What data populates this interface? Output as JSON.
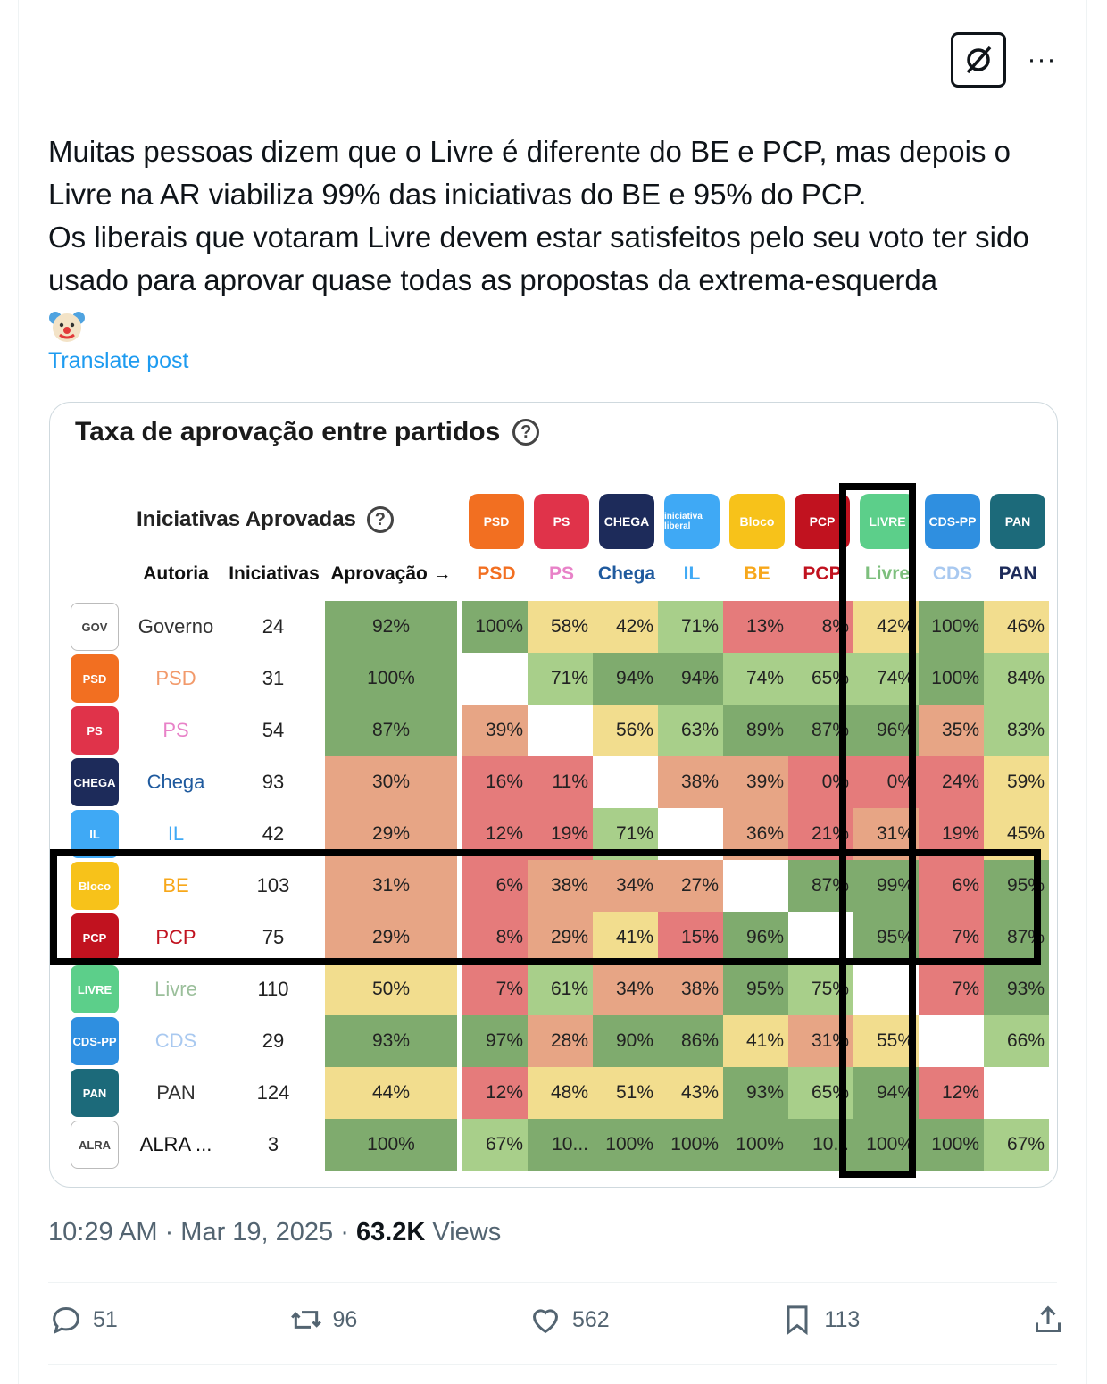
{
  "post": {
    "text_lines": [
      "Muitas pessoas dizem que o Livre é diferente do BE e PCP, mas depois o Livre na AR viabiliza 99% das iniciativas do BE e 95% do PCP.",
      "Os liberais que votaram Livre devem estar satisfeitos pelo seu voto ter sido usado para aprovar quase todas as propostas da extrema-esquerda"
    ],
    "emoji": "clown-face",
    "translate_label": "Translate post",
    "more_label": "···"
  },
  "media": {
    "title": "Taxa de aprovação entre partidos",
    "subtitle": "Iniciativas Aprovadas",
    "help_glyph": "?",
    "headers": {
      "autoria": "Autoria",
      "iniciativas": "Iniciativas",
      "aprovacao": "Aprovação →"
    },
    "columns": [
      {
        "name": "PSD",
        "logo": "PSD",
        "color": "#f26f21"
      },
      {
        "name": "PS",
        "logo": "PS",
        "color": "#e0334a"
      },
      {
        "name": "Chega",
        "logo": "CHEGA",
        "color": "#1d2b5a"
      },
      {
        "name": "IL",
        "logo": "iniciativa liberal",
        "color": "#3fa9f5"
      },
      {
        "name": "BE",
        "logo": "Bloco",
        "color": "#f7c21a"
      },
      {
        "name": "PCP",
        "logo": "PCP",
        "color": "#c1121f"
      },
      {
        "name": "Livre",
        "logo": "LIVRE",
        "color": "#5ccf8a"
      },
      {
        "name": "CDS",
        "logo": "CDS-PP",
        "color": "#2f8fe0"
      },
      {
        "name": "PAN",
        "logo": "PAN",
        "color": "#1c6a7a"
      }
    ],
    "column_label_colors": [
      "#f26f21",
      "#e882c8",
      "#1f5a9e",
      "#3fa9f5",
      "#f7a71a",
      "#c1121f",
      "#7dbf7d",
      "#a9c9f0",
      "#1d2b5a"
    ],
    "rows": [
      {
        "name": "Governo",
        "count": "24",
        "approval": "92%",
        "label_color": "#333",
        "logo": "GOV",
        "logo_color": "#ffffff",
        "cells": [
          "100%",
          "58%",
          "42%",
          "71%",
          "13%",
          "8%",
          "42%",
          "100%",
          "46%"
        ]
      },
      {
        "name": "PSD",
        "count": "31",
        "approval": "100%",
        "label_color": "#f29a6b",
        "logo": "PSD",
        "logo_color": "#f26f21",
        "cells": [
          "",
          "71%",
          "94%",
          "94%",
          "74%",
          "65%",
          "74%",
          "100%",
          "84%"
        ]
      },
      {
        "name": "PS",
        "count": "54",
        "approval": "87%",
        "label_color": "#e882c8",
        "logo": "PS",
        "logo_color": "#e0334a",
        "cells": [
          "39%",
          "",
          "56%",
          "63%",
          "89%",
          "87%",
          "96%",
          "35%",
          "83%"
        ]
      },
      {
        "name": "Chega",
        "count": "93",
        "approval": "30%",
        "label_color": "#1f5a9e",
        "logo": "CHEGA",
        "logo_color": "#1d2b5a",
        "cells": [
          "16%",
          "11%",
          "",
          "38%",
          "39%",
          "0%",
          "0%",
          "24%",
          "59%"
        ]
      },
      {
        "name": "IL",
        "count": "42",
        "approval": "29%",
        "label_color": "#3fa9f5",
        "logo": "IL",
        "logo_color": "#3fa9f5",
        "cells": [
          "12%",
          "19%",
          "71%",
          "",
          "36%",
          "21%",
          "31%",
          "19%",
          "45%"
        ]
      },
      {
        "name": "BE",
        "count": "103",
        "approval": "31%",
        "label_color": "#f7a71a",
        "logo": "Bloco",
        "logo_color": "#f7c21a",
        "cells": [
          "6%",
          "38%",
          "34%",
          "27%",
          "",
          "87%",
          "99%",
          "6%",
          "95%"
        ]
      },
      {
        "name": "PCP",
        "count": "75",
        "approval": "29%",
        "label_color": "#c1121f",
        "logo": "PCP",
        "logo_color": "#c1121f",
        "cells": [
          "8%",
          "29%",
          "41%",
          "15%",
          "96%",
          "",
          "95%",
          "7%",
          "87%"
        ]
      },
      {
        "name": "Livre",
        "count": "110",
        "approval": "50%",
        "label_color": "#9bbf9b",
        "logo": "LIVRE",
        "logo_color": "#5ccf8a",
        "cells": [
          "7%",
          "61%",
          "34%",
          "38%",
          "95%",
          "75%",
          "",
          "7%",
          "93%"
        ]
      },
      {
        "name": "CDS",
        "count": "29",
        "approval": "93%",
        "label_color": "#a9c9f0",
        "logo": "CDS-PP",
        "logo_color": "#2f8fe0",
        "cells": [
          "97%",
          "28%",
          "90%",
          "86%",
          "41%",
          "31%",
          "55%",
          "",
          "66%"
        ]
      },
      {
        "name": "PAN",
        "count": "124",
        "approval": "44%",
        "label_color": "#333",
        "logo": "PAN",
        "logo_color": "#1c6a7a",
        "cells": [
          "12%",
          "48%",
          "51%",
          "43%",
          "93%",
          "65%",
          "94%",
          "12%",
          ""
        ]
      },
      {
        "name": "ALRA ...",
        "count": "3",
        "approval": "100%",
        "label_color": "#111",
        "logo": "ALRA",
        "logo_color": "#ffffff",
        "cells": [
          "67%",
          "10...",
          "100%",
          "100%",
          "100%",
          "10...",
          "100%",
          "100%",
          "67%"
        ]
      }
    ],
    "cell_values": [
      [
        100,
        58,
        42,
        71,
        13,
        8,
        42,
        100,
        46
      ],
      [
        null,
        71,
        94,
        94,
        74,
        65,
        74,
        100,
        84
      ],
      [
        39,
        null,
        56,
        63,
        89,
        87,
        96,
        35,
        83
      ],
      [
        16,
        11,
        null,
        38,
        39,
        0,
        0,
        24,
        59
      ],
      [
        12,
        19,
        71,
        null,
        36,
        21,
        31,
        19,
        45
      ],
      [
        6,
        38,
        34,
        27,
        null,
        87,
        99,
        6,
        95
      ],
      [
        8,
        29,
        41,
        15,
        96,
        null,
        95,
        7,
        87
      ],
      [
        7,
        61,
        34,
        38,
        95,
        75,
        null,
        7,
        93
      ],
      [
        97,
        28,
        90,
        86,
        41,
        31,
        55,
        null,
        66
      ],
      [
        12,
        48,
        51,
        43,
        93,
        65,
        94,
        12,
        null
      ],
      [
        67,
        100,
        100,
        100,
        100,
        100,
        100,
        100,
        67
      ]
    ],
    "approval_values": [
      92,
      100,
      87,
      30,
      29,
      31,
      29,
      50,
      93,
      44,
      100
    ],
    "heat_colors": {
      "green": "#7fab6e",
      "light_green": "#a8cf8a",
      "yellow": "#f2dd8e",
      "orange": "#e7a585",
      "red": "#e57b7b"
    }
  },
  "meta": {
    "time": "10:29 AM · Mar 19, 2025 · ",
    "views_count": "63.2K",
    "views_label": " Views"
  },
  "actions": {
    "replies": "51",
    "reposts": "96",
    "likes": "562",
    "bookmarks": "113"
  }
}
